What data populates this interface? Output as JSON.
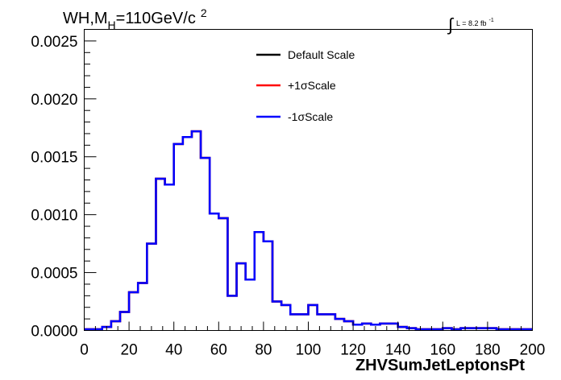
{
  "chart_data": {
    "type": "line",
    "title": {
      "part1": "WH,M",
      "subscript": "H",
      "part2": "=110GeV/c",
      "superscript": "2"
    },
    "lumi": {
      "integral": "∫",
      "text": "L = 8.2 fb",
      "superscript": "-1"
    },
    "xlabel": "ZHVSumJetLeptonsPt",
    "ylabel": "",
    "xlim": [
      0,
      200
    ],
    "ylim": [
      0,
      0.0026
    ],
    "x_ticks": [
      {
        "value": 0,
        "label": "0"
      },
      {
        "value": 20,
        "label": "20"
      },
      {
        "value": 40,
        "label": "40"
      },
      {
        "value": 60,
        "label": "60"
      },
      {
        "value": 80,
        "label": "80"
      },
      {
        "value": 100,
        "label": "100"
      },
      {
        "value": 120,
        "label": "120"
      },
      {
        "value": 140,
        "label": "140"
      },
      {
        "value": 160,
        "label": "160"
      },
      {
        "value": 180,
        "label": "180"
      },
      {
        "value": 200,
        "label": "200"
      }
    ],
    "y_ticks": [
      {
        "value": 0,
        "label": "0.0000"
      },
      {
        "value": 0.0005,
        "label": "0.0005"
      },
      {
        "value": 0.001,
        "label": "0.0010"
      },
      {
        "value": 0.0015,
        "label": "0.0015"
      },
      {
        "value": 0.002,
        "label": "0.0020"
      },
      {
        "value": 0.0025,
        "label": "0.0025"
      }
    ],
    "bin_edges": [
      0,
      4,
      8,
      12,
      16,
      20,
      24,
      28,
      32,
      36,
      40,
      44,
      48,
      52,
      56,
      60,
      64,
      68,
      72,
      76,
      80,
      84,
      88,
      92,
      96,
      100,
      104,
      108,
      112,
      116,
      120,
      124,
      128,
      132,
      136,
      140,
      144,
      148,
      152,
      156,
      160,
      164,
      168,
      172,
      176,
      180,
      184,
      188,
      192,
      196,
      200
    ],
    "series": [
      {
        "name": "Default Scale",
        "color": "#000000",
        "values": [
          1e-05,
          1e-05,
          3e-05,
          8e-05,
          0.00016,
          0.00033,
          0.00041,
          0.00075,
          0.00131,
          0.00126,
          0.00161,
          0.00167,
          0.00172,
          0.00149,
          0.00101,
          0.00097,
          0.0003,
          0.00058,
          0.00044,
          0.00085,
          0.00077,
          0.00025,
          0.00022,
          0.00014,
          0.00014,
          0.00022,
          0.00014,
          0.00014,
          0.0001,
          8e-05,
          5e-05,
          6e-05,
          5e-05,
          6e-05,
          6e-05,
          3e-05,
          2e-05,
          1e-05,
          1e-05,
          1e-05,
          2e-05,
          1e-05,
          2e-05,
          2e-05,
          2e-05,
          2e-05,
          1e-05,
          1e-05,
          1e-05,
          1e-05
        ]
      },
      {
        "name": "+1σScale",
        "color": "#ff0000",
        "values": [
          1e-05,
          1e-05,
          3e-05,
          8e-05,
          0.00016,
          0.00033,
          0.00041,
          0.00075,
          0.00131,
          0.00126,
          0.00161,
          0.00167,
          0.00172,
          0.00149,
          0.00101,
          0.00097,
          0.0003,
          0.00058,
          0.00044,
          0.00085,
          0.00077,
          0.00025,
          0.00022,
          0.00014,
          0.00014,
          0.00022,
          0.00014,
          0.00014,
          0.0001,
          8e-05,
          5e-05,
          6e-05,
          5e-05,
          6e-05,
          6e-05,
          3e-05,
          2e-05,
          1e-05,
          1e-05,
          1e-05,
          2e-05,
          1e-05,
          2e-05,
          2e-05,
          2e-05,
          2e-05,
          1e-05,
          1e-05,
          1e-05,
          1e-05
        ]
      },
      {
        "name": "-1σScale",
        "color": "#0000ff",
        "values": [
          1e-05,
          1e-05,
          3e-05,
          8e-05,
          0.00016,
          0.00033,
          0.00041,
          0.00075,
          0.00131,
          0.00126,
          0.00161,
          0.00167,
          0.00172,
          0.00149,
          0.00101,
          0.00097,
          0.0003,
          0.00058,
          0.00044,
          0.00085,
          0.00077,
          0.00025,
          0.00022,
          0.00014,
          0.00014,
          0.00022,
          0.00014,
          0.00014,
          0.0001,
          8e-05,
          5e-05,
          6e-05,
          5e-05,
          6e-05,
          6e-05,
          3e-05,
          2e-05,
          1e-05,
          1e-05,
          1e-05,
          2e-05,
          1e-05,
          2e-05,
          2e-05,
          2e-05,
          2e-05,
          1e-05,
          1e-05,
          1e-05,
          1e-05
        ]
      }
    ],
    "grid": false,
    "legend_position": "top-center"
  }
}
